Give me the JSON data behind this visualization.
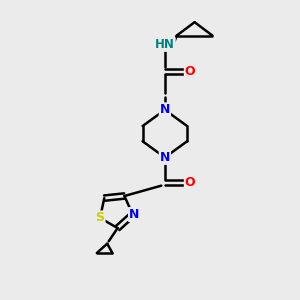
{
  "background_color": "#ebebeb",
  "bond_color": "#000000",
  "N_color": "#0000ff",
  "O_color": "#ff0000",
  "S_color": "#cccc00",
  "NH_color": "#008080",
  "bond_width": 1.8,
  "figsize": [
    3.0,
    3.0
  ],
  "dpi": 100,
  "xlim": [
    0,
    10
  ],
  "ylim": [
    0,
    10
  ]
}
